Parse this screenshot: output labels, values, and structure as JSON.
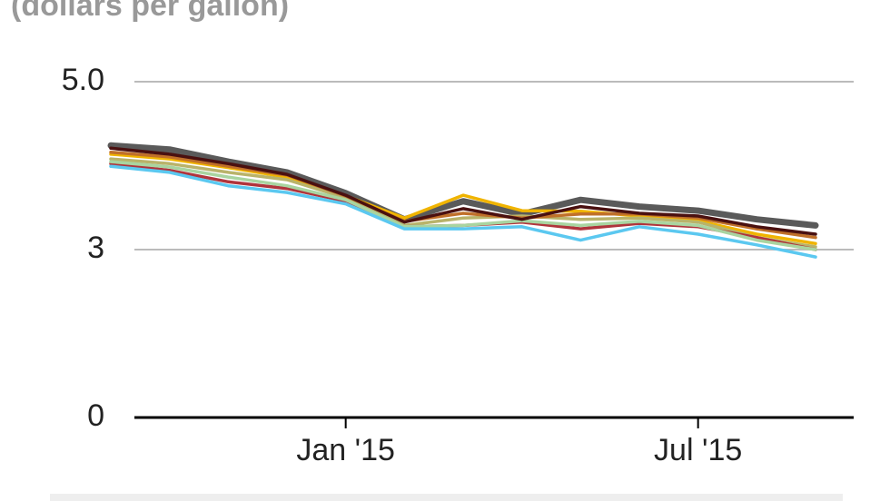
{
  "chart_data": {
    "type": "line",
    "subtitle": "(dollars per gallon)",
    "x": [
      "2014-09",
      "2014-10",
      "2014-11",
      "2014-12",
      "2015-01",
      "2015-02",
      "2015-03",
      "2015-04",
      "2015-05",
      "2015-06",
      "2015-07",
      "2015-08",
      "2015-09"
    ],
    "xlim": [
      "2014-09",
      "2015-09"
    ],
    "xticks": [
      {
        "value": "2015-01",
        "label": "Jan '15"
      },
      {
        "value": "2015-07",
        "label": "Jul '15"
      }
    ],
    "ylim": [
      0,
      5
    ],
    "yticks": [
      0,
      {
        "value": 2.5,
        "label": "3"
      },
      {
        "value": 5,
        "label": "5.0"
      }
    ],
    "grid": true,
    "series": [
      {
        "color": "#5a5a5a",
        "values": [
          4.05,
          3.99,
          3.81,
          3.65,
          3.34,
          2.95,
          3.22,
          3.03,
          3.24,
          3.14,
          3.08,
          2.95,
          2.86
        ]
      },
      {
        "color": "#f0b400",
        "values": [
          3.92,
          3.85,
          3.72,
          3.58,
          3.3,
          2.97,
          3.31,
          3.08,
          3.07,
          3.0,
          2.93,
          2.73,
          2.59
        ]
      },
      {
        "color": "#b9b36a",
        "values": [
          3.85,
          3.78,
          3.65,
          3.54,
          3.27,
          2.86,
          2.97,
          3.0,
          2.95,
          2.97,
          2.91,
          2.68,
          2.54
        ]
      },
      {
        "color": "#c0702a",
        "values": [
          3.95,
          3.88,
          3.74,
          3.61,
          3.3,
          2.92,
          3.04,
          2.97,
          3.03,
          3.03,
          2.97,
          2.81,
          2.68
        ]
      },
      {
        "color": "#b0343c",
        "values": [
          3.78,
          3.68,
          3.51,
          3.41,
          3.22,
          2.84,
          2.86,
          2.91,
          2.81,
          2.89,
          2.84,
          2.68,
          2.5
        ]
      },
      {
        "color": "#a9d4a0",
        "values": [
          3.81,
          3.73,
          3.58,
          3.45,
          3.24,
          2.84,
          2.86,
          2.93,
          2.86,
          2.92,
          2.86,
          2.64,
          2.5
        ]
      },
      {
        "color": "#5bc8f0",
        "values": [
          3.74,
          3.65,
          3.45,
          3.35,
          3.18,
          2.81,
          2.81,
          2.84,
          2.64,
          2.84,
          2.73,
          2.57,
          2.39
        ]
      },
      {
        "color": "#4a1010",
        "values": [
          4.01,
          3.92,
          3.78,
          3.62,
          3.31,
          2.91,
          3.11,
          2.95,
          3.14,
          3.04,
          3.0,
          2.84,
          2.73
        ]
      }
    ]
  }
}
